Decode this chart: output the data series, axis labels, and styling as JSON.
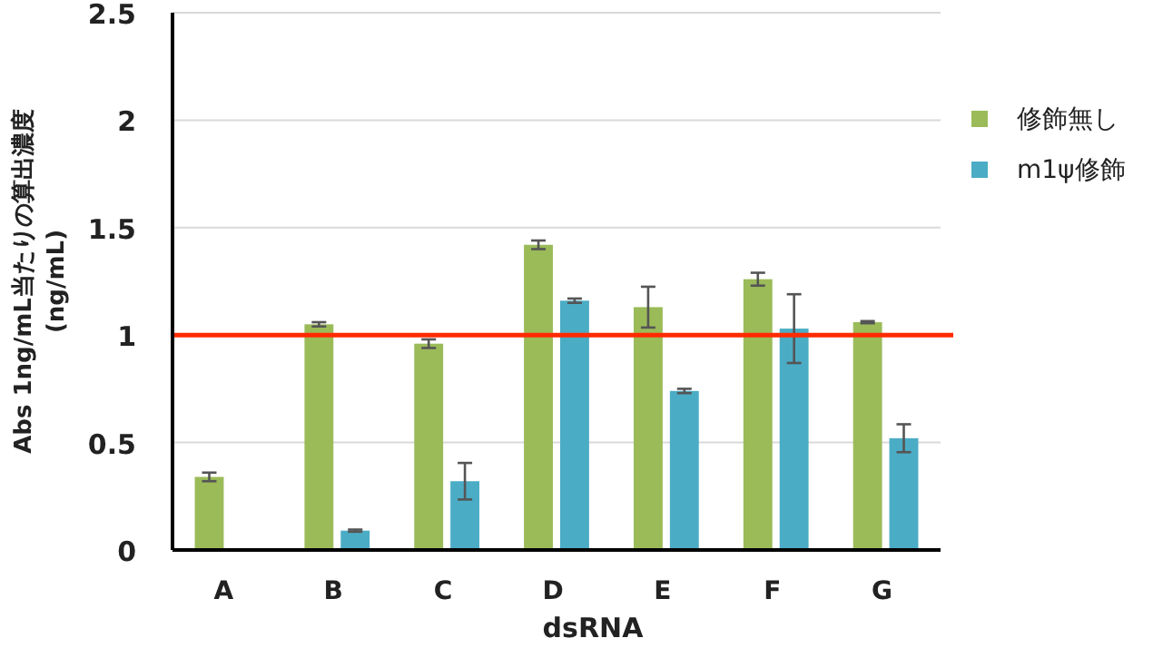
{
  "chart_data": {
    "type": "bar",
    "xlabel": "dsRNA",
    "ylabel": "Abs 1ng/mL当たりの算出濃度\n(ng/mL)",
    "categories": [
      "A",
      "B",
      "C",
      "D",
      "E",
      "F",
      "G"
    ],
    "series": [
      {
        "name": "修飾無し",
        "color": "#9bbb59",
        "values": [
          0.34,
          1.05,
          0.96,
          1.42,
          1.13,
          1.26,
          1.06
        ],
        "errors": [
          0.02,
          0.01,
          0.02,
          0.02,
          0.095,
          0.03,
          0.005
        ]
      },
      {
        "name": "m1ψ修飾",
        "color": "#4bacc6",
        "values": [
          null,
          0.09,
          0.32,
          1.16,
          0.74,
          1.03,
          0.52
        ],
        "errors": [
          null,
          0.005,
          0.085,
          0.01,
          0.01,
          0.16,
          0.065
        ]
      }
    ],
    "ylim": [
      0,
      2.5
    ],
    "yticks": [
      0,
      0.5,
      1,
      1.5,
      2,
      2.5
    ],
    "grid": "y",
    "legend": "right",
    "ref_lines": [
      {
        "axis": "y",
        "value": 1,
        "color": "#ff2a00"
      }
    ]
  }
}
